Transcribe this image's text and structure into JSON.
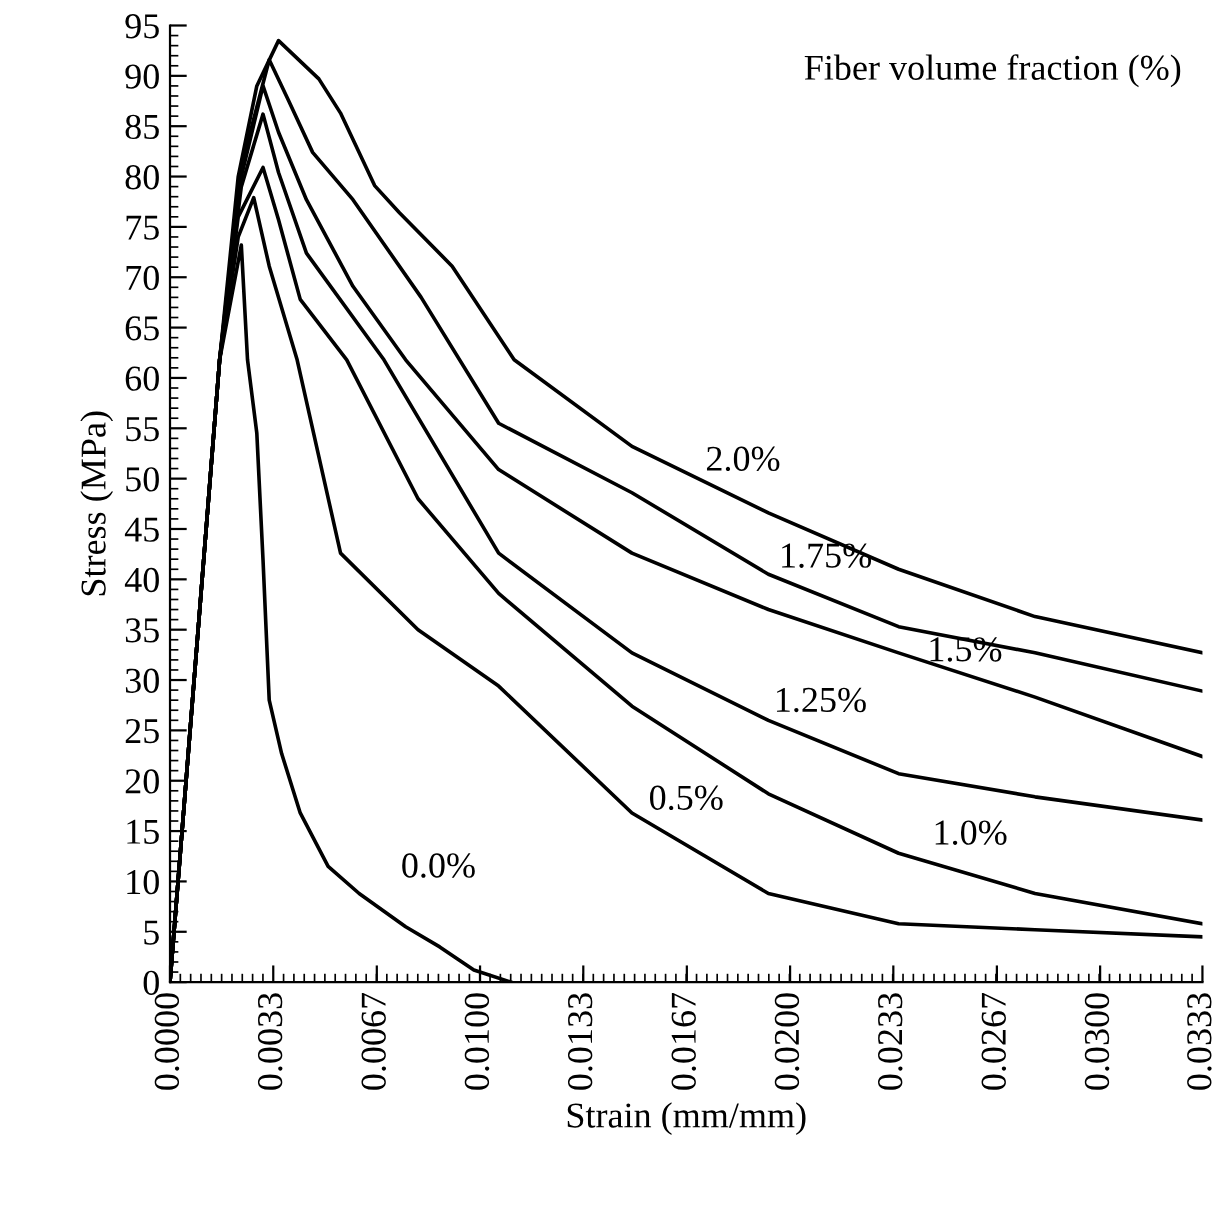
{
  "chart_data": {
    "type": "line",
    "xlabel": "Strain (mm/mm)",
    "ylabel": "Stress (MPa)",
    "xlim": [
      0,
      0.0333
    ],
    "ylim": [
      0,
      95
    ],
    "xticks": [
      {
        "value": 0,
        "label": "0.0000"
      },
      {
        "value": 0.00333,
        "label": "0.0033"
      },
      {
        "value": 0.00667,
        "label": "0.0067"
      },
      {
        "value": 0.01,
        "label": "0.0100"
      },
      {
        "value": 0.01333,
        "label": "0.0133"
      },
      {
        "value": 0.01667,
        "label": "0.0167"
      },
      {
        "value": 0.02,
        "label": "0.0200"
      },
      {
        "value": 0.02333,
        "label": "0.0233"
      },
      {
        "value": 0.02667,
        "label": "0.0267"
      },
      {
        "value": 0.03,
        "label": "0.0300"
      },
      {
        "value": 0.0333,
        "label": "0.0333"
      }
    ],
    "yticks": [
      0,
      5,
      10,
      15,
      20,
      25,
      30,
      35,
      40,
      45,
      50,
      55,
      60,
      65,
      70,
      75,
      80,
      85,
      90,
      95
    ],
    "grid": false,
    "legend": false,
    "marker": "none",
    "line_style": "solid",
    "series": [
      {
        "name": "0.0%",
        "color": "#000000",
        "x": [
          0,
          0.001,
          0.0016,
          0.0023,
          0.0025,
          0.0028,
          0.003,
          0.0032,
          0.0036,
          0.0042,
          0.0051,
          0.0061,
          0.0076,
          0.0087,
          0.0098,
          0.011
        ],
        "values": [
          0,
          38.6,
          61.8,
          73.2,
          61.8,
          54.5,
          41.9,
          28.0,
          22.7,
          16.8,
          11.5,
          8.8,
          5.5,
          3.5,
          1.2,
          0
        ]
      },
      {
        "name": "0.5%",
        "color": "#000000",
        "x": [
          0,
          0.001,
          0.0016,
          0.0022,
          0.0027,
          0.0032,
          0.0041,
          0.0055,
          0.008,
          0.0106,
          0.0149,
          0.0193,
          0.0235,
          0.0279,
          0.0333
        ],
        "values": [
          0,
          38.6,
          61.8,
          74,
          77.9,
          71.1,
          61.8,
          42.6,
          35,
          29.4,
          16.8,
          8.8,
          5.8,
          5.2,
          4.5
        ]
      },
      {
        "name": "1.0%",
        "color": "#000000",
        "x": [
          0,
          0.001,
          0.0016,
          0.0022,
          0.003,
          0.0035,
          0.0042,
          0.0057,
          0.008,
          0.0106,
          0.0149,
          0.0193,
          0.0235,
          0.0279,
          0.0333
        ],
        "values": [
          0,
          38.6,
          61.8,
          76,
          80.9,
          75.7,
          67.8,
          61.8,
          48,
          38.6,
          27.4,
          18.7,
          12.8,
          8.8,
          5.8
        ]
      },
      {
        "name": "1.25%",
        "color": "#000000",
        "x": [
          0,
          0.001,
          0.0016,
          0.0023,
          0.003,
          0.0035,
          0.0044,
          0.0069,
          0.0106,
          0.0149,
          0.0193,
          0.0235,
          0.0279,
          0.0333
        ],
        "values": [
          0,
          38.6,
          61.8,
          79,
          86.2,
          80.4,
          72.4,
          61.8,
          42.6,
          32.7,
          26.0,
          20.7,
          18.4,
          16.1
        ]
      },
      {
        "name": "1.5%",
        "color": "#000000",
        "x": [
          0,
          0.001,
          0.0016,
          0.0023,
          0.003,
          0.0035,
          0.0044,
          0.0059,
          0.0076,
          0.0106,
          0.0149,
          0.0193,
          0.0235,
          0.0279,
          0.0333
        ],
        "values": [
          0,
          38.6,
          61.8,
          80,
          89.0,
          84.4,
          77.7,
          69.1,
          61.8,
          50.9,
          42.6,
          37.0,
          32.7,
          28.3,
          22.4
        ]
      },
      {
        "name": "1.75%",
        "color": "#000000",
        "x": [
          0,
          0.001,
          0.0016,
          0.0023,
          0.0032,
          0.0038,
          0.0046,
          0.0059,
          0.0081,
          0.0106,
          0.0149,
          0.0193,
          0.0235,
          0.0279,
          0.0333
        ],
        "values": [
          0,
          38.6,
          61.8,
          81,
          91.6,
          87.7,
          82.4,
          77.7,
          68,
          55.5,
          48.6,
          40.5,
          35.3,
          32.7,
          28.9
        ]
      },
      {
        "name": "2.0%",
        "color": "#000000",
        "x": [
          0,
          0.001,
          0.0016,
          0.0022,
          0.0028,
          0.0035,
          0.0048,
          0.0055,
          0.0066,
          0.0074,
          0.0091,
          0.0111,
          0.0149,
          0.0171,
          0.0193,
          0.0235,
          0.0279,
          0.0333
        ],
        "values": [
          0,
          38.6,
          61.8,
          80,
          89,
          93.5,
          89.7,
          86.3,
          79.1,
          76.4,
          71.1,
          61.8,
          53.2,
          49.9,
          46.6,
          41.0,
          36.3,
          32.7
        ]
      }
    ],
    "annotations": [
      "Fiber volume fraction (%)"
    ]
  }
}
